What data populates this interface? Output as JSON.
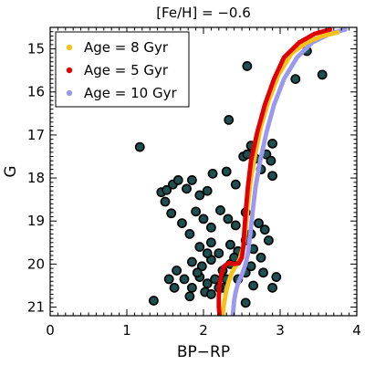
{
  "chart_data": {
    "type": "scatter",
    "title": "[Fe/H] = −0.6",
    "xlabel": "BP−RP",
    "ylabel": "G",
    "xlim": [
      0,
      4
    ],
    "ylim": [
      21.2,
      14.5
    ],
    "y_inverted": true,
    "x_ticks": [
      0,
      1,
      2,
      3,
      4
    ],
    "y_ticks": [
      15,
      16,
      17,
      18,
      19,
      20,
      21
    ],
    "legend_position": "top-left",
    "stars": {
      "color": "#000000",
      "fill_color": "#1f4f4f",
      "points": [
        [
          1.17,
          17.28
        ],
        [
          1.45,
          18.33
        ],
        [
          1.52,
          18.28
        ],
        [
          1.5,
          18.55
        ],
        [
          1.6,
          18.15
        ],
        [
          1.67,
          18.05
        ],
        [
          1.78,
          18.25
        ],
        [
          1.85,
          18.05
        ],
        [
          1.95,
          18.4
        ],
        [
          2.05,
          18.3
        ],
        [
          2.12,
          17.9
        ],
        [
          2.3,
          17.85
        ],
        [
          2.42,
          18.15
        ],
        [
          2.52,
          17.5
        ],
        [
          2.57,
          17.45
        ],
        [
          2.62,
          17.25
        ],
        [
          2.68,
          17.55
        ],
        [
          2.75,
          17.8
        ],
        [
          2.82,
          17.45
        ],
        [
          2.88,
          17.6
        ],
        [
          2.9,
          17.95
        ],
        [
          2.33,
          16.65
        ],
        [
          2.57,
          15.4
        ],
        [
          3.2,
          15.7
        ],
        [
          3.35,
          15.05
        ],
        [
          3.55,
          15.6
        ],
        [
          2.9,
          17.2
        ],
        [
          1.58,
          18.82
        ],
        [
          1.72,
          19.05
        ],
        [
          1.82,
          19.3
        ],
        [
          1.9,
          18.78
        ],
        [
          2.0,
          18.95
        ],
        [
          2.1,
          19.15
        ],
        [
          2.22,
          18.75
        ],
        [
          2.32,
          18.95
        ],
        [
          2.42,
          19.1
        ],
        [
          2.55,
          18.8
        ],
        [
          2.62,
          19.3
        ],
        [
          2.72,
          19.05
        ],
        [
          2.8,
          19.2
        ],
        [
          2.85,
          19.45
        ],
        [
          1.95,
          19.6
        ],
        [
          2.1,
          19.5
        ],
        [
          2.2,
          19.75
        ],
        [
          2.35,
          19.55
        ],
        [
          2.45,
          19.7
        ],
        [
          2.55,
          19.45
        ],
        [
          2.65,
          19.65
        ],
        [
          2.75,
          19.85
        ],
        [
          1.85,
          19.95
        ],
        [
          1.98,
          20.05
        ],
        [
          2.1,
          19.9
        ],
        [
          2.25,
          20.15
        ],
        [
          2.35,
          20.0
        ],
        [
          1.65,
          20.15
        ],
        [
          1.75,
          20.35
        ],
        [
          1.85,
          20.55
        ],
        [
          1.95,
          20.3
        ],
        [
          2.05,
          20.45
        ],
        [
          2.15,
          20.35
        ],
        [
          2.02,
          20.65
        ],
        [
          1.82,
          20.75
        ],
        [
          1.62,
          20.55
        ],
        [
          1.55,
          20.35
        ],
        [
          2.25,
          20.55
        ],
        [
          2.45,
          20.35
        ],
        [
          2.55,
          20.2
        ],
        [
          2.65,
          20.5
        ],
        [
          1.35,
          20.85
        ],
        [
          2.1,
          20.7
        ],
        [
          2.55,
          20.9
        ],
        [
          2.9,
          20.55
        ],
        [
          2.95,
          20.3
        ],
        [
          2.78,
          20.2
        ],
        [
          2.62,
          20.05
        ],
        [
          2.4,
          19.85
        ],
        [
          2.2,
          20.55
        ],
        [
          1.92,
          20.2
        ],
        [
          2.05,
          19.75
        ],
        [
          2.3,
          20.35
        ]
      ]
    },
    "series": [
      {
        "name": "Age = 8 Gyr",
        "color": "#f5c11a",
        "points": [
          [
            3.75,
            14.62
          ],
          [
            3.55,
            14.7
          ],
          [
            3.35,
            14.85
          ],
          [
            3.15,
            15.1
          ],
          [
            2.98,
            15.6
          ],
          [
            2.85,
            16.2
          ],
          [
            2.75,
            16.8
          ],
          [
            2.68,
            17.4
          ],
          [
            2.62,
            18.0
          ],
          [
            2.58,
            18.6
          ],
          [
            2.55,
            19.2
          ],
          [
            2.52,
            19.6
          ],
          [
            2.47,
            19.9
          ],
          [
            2.42,
            20.05
          ],
          [
            2.37,
            20.2
          ],
          [
            2.33,
            20.4
          ],
          [
            2.3,
            20.6
          ],
          [
            2.28,
            20.8
          ],
          [
            2.26,
            21.0
          ],
          [
            2.25,
            21.2
          ]
        ]
      },
      {
        "name": "Age = 5 Gyr",
        "color": "#e00000",
        "points": [
          [
            3.65,
            14.55
          ],
          [
            3.45,
            14.65
          ],
          [
            3.25,
            14.85
          ],
          [
            3.05,
            15.2
          ],
          [
            2.92,
            15.7
          ],
          [
            2.8,
            16.3
          ],
          [
            2.7,
            16.95
          ],
          [
            2.62,
            17.6
          ],
          [
            2.58,
            18.2
          ],
          [
            2.55,
            18.8
          ],
          [
            2.53,
            19.3
          ],
          [
            2.52,
            19.6
          ],
          [
            2.5,
            19.85
          ],
          [
            2.46,
            19.98
          ],
          [
            2.4,
            20.0
          ],
          [
            2.33,
            19.97
          ],
          [
            2.27,
            20.05
          ],
          [
            2.23,
            20.25
          ],
          [
            2.21,
            20.5
          ],
          [
            2.2,
            20.75
          ],
          [
            2.2,
            21.0
          ],
          [
            2.21,
            21.2
          ]
        ]
      },
      {
        "name": "Age = 10 Gyr",
        "color": "#9b99ee",
        "points": [
          [
            3.85,
            14.55
          ],
          [
            3.65,
            14.65
          ],
          [
            3.42,
            14.85
          ],
          [
            3.22,
            15.2
          ],
          [
            3.05,
            15.7
          ],
          [
            2.92,
            16.3
          ],
          [
            2.82,
            16.95
          ],
          [
            2.74,
            17.6
          ],
          [
            2.68,
            18.2
          ],
          [
            2.64,
            18.8
          ],
          [
            2.61,
            19.3
          ],
          [
            2.58,
            19.75
          ],
          [
            2.55,
            20.0
          ],
          [
            2.5,
            20.25
          ],
          [
            2.45,
            20.45
          ],
          [
            2.42,
            20.65
          ],
          [
            2.4,
            20.85
          ],
          [
            2.39,
            21.05
          ],
          [
            2.38,
            21.2
          ]
        ]
      }
    ]
  }
}
